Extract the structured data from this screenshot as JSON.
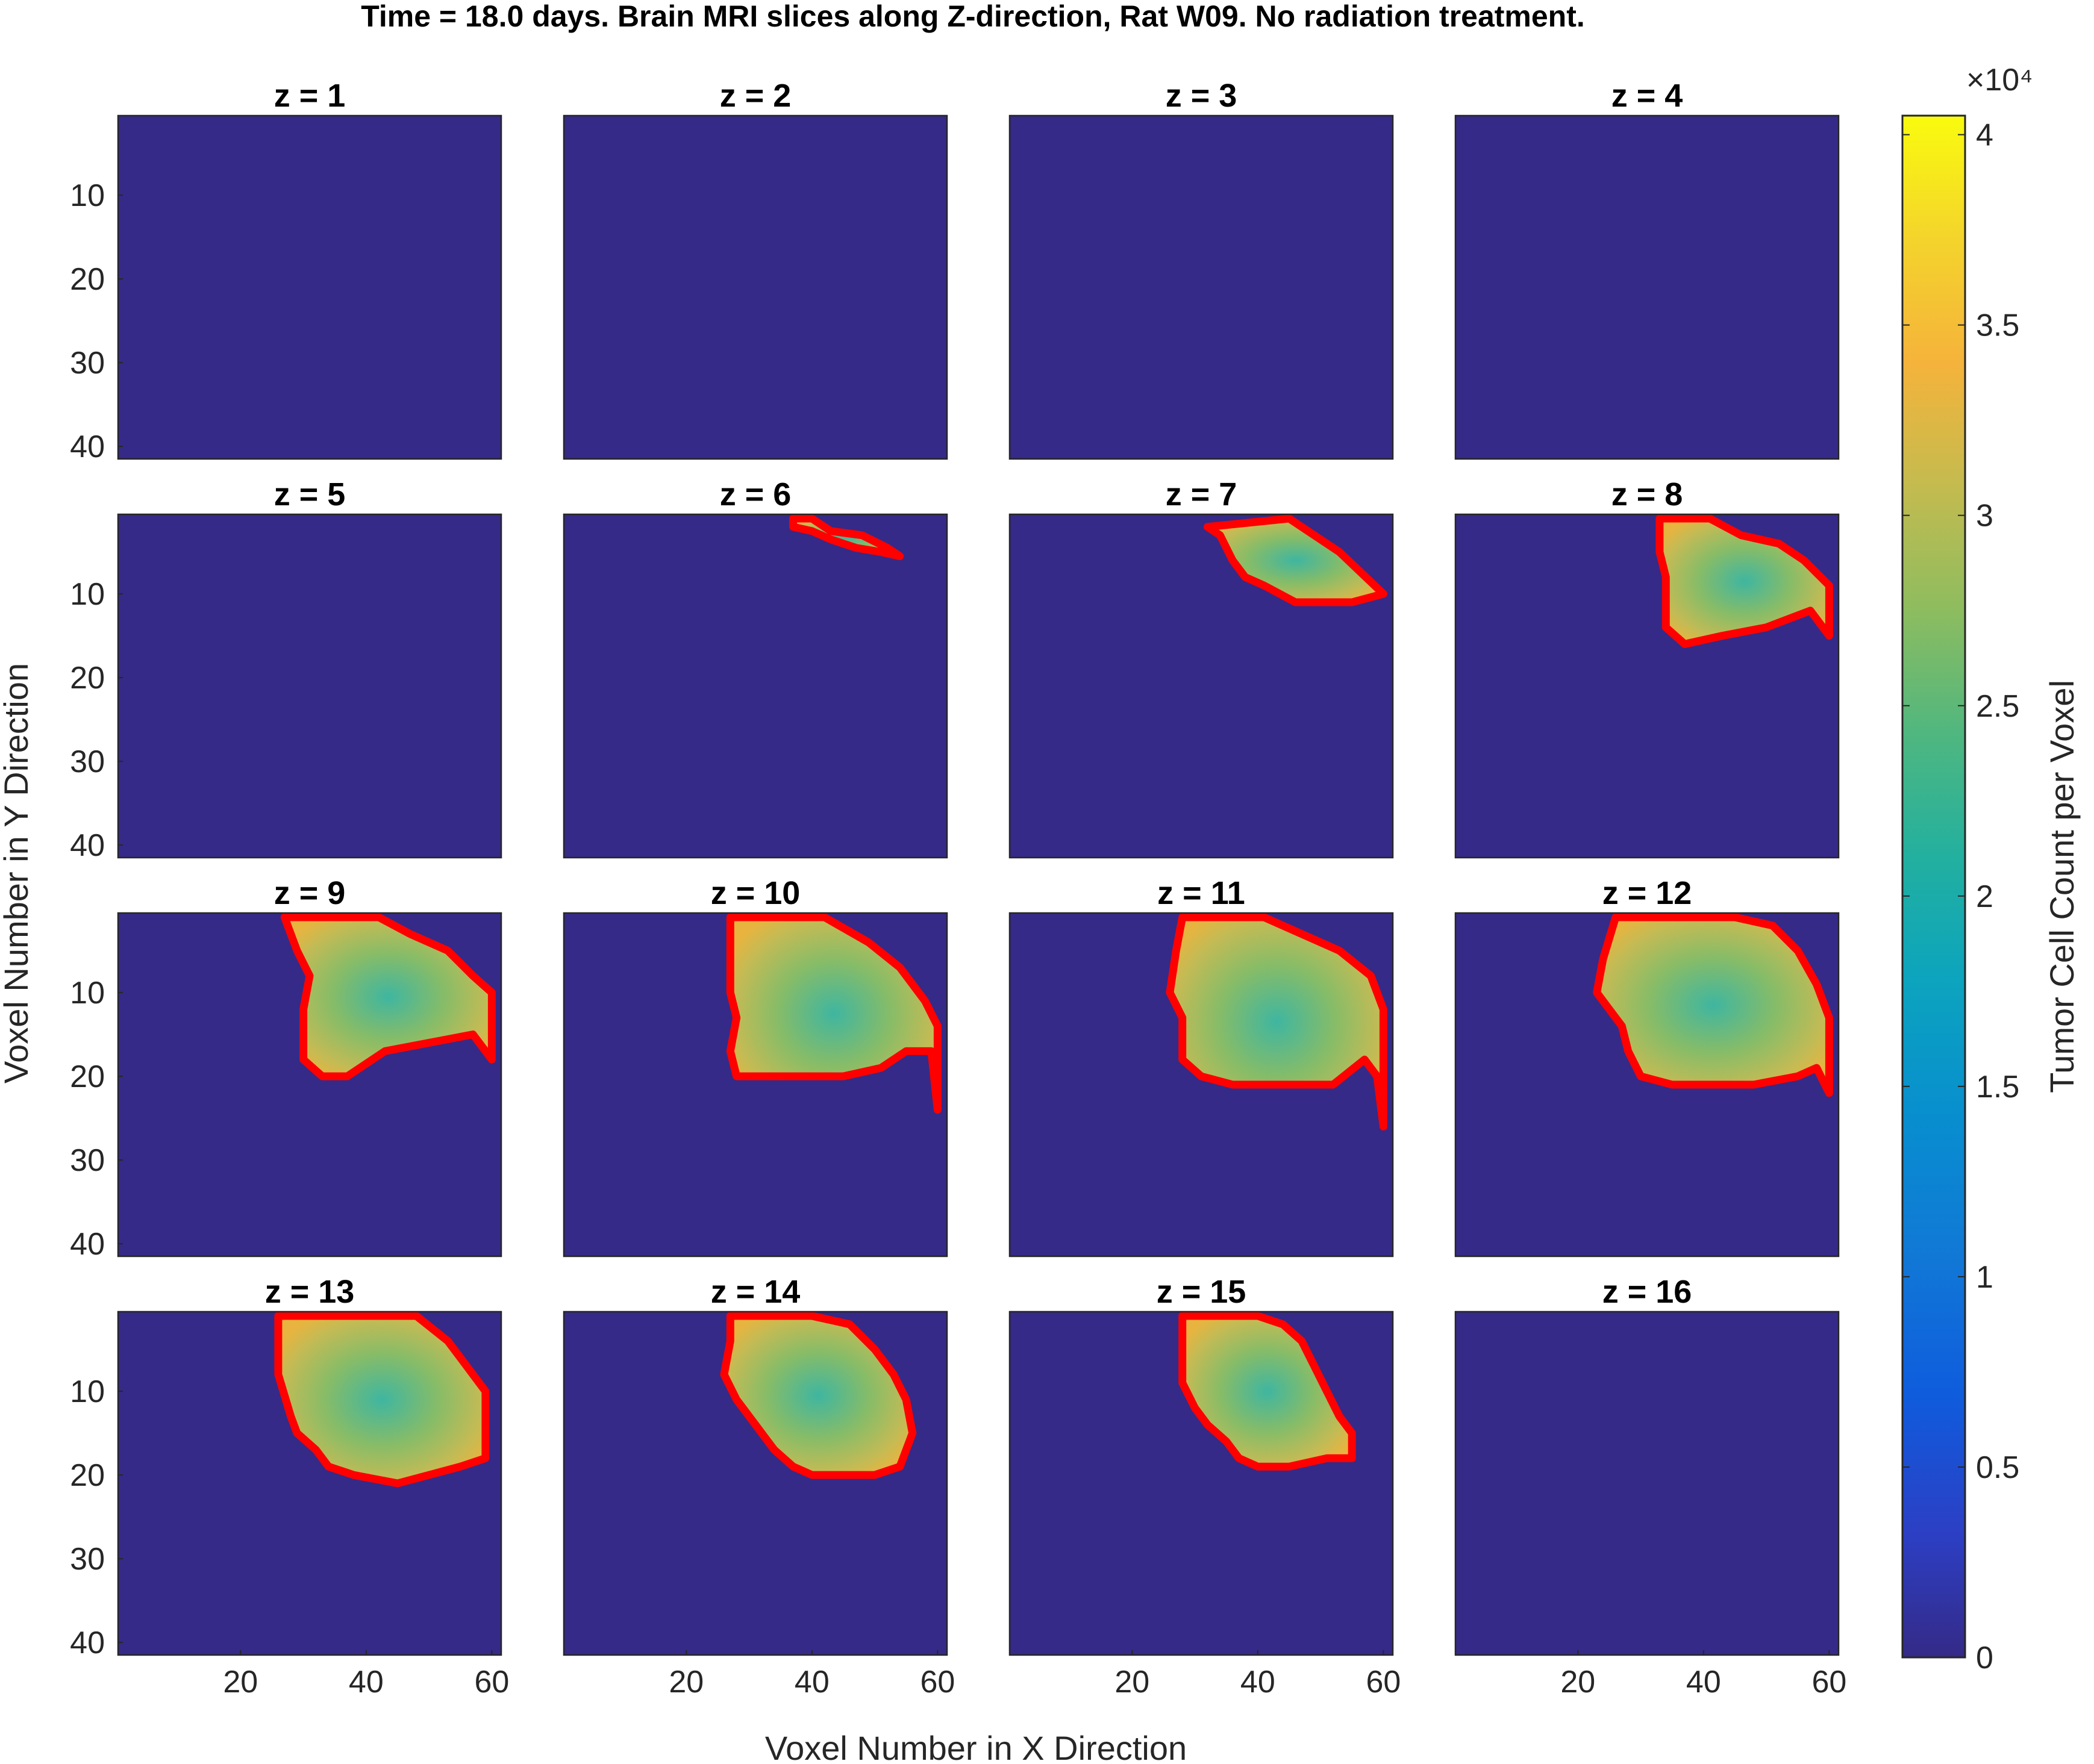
{
  "chart_data": {
    "type": "heatmap",
    "title": "Time = 18.0 days. Brain MRI slices along Z-direction, Rat W09. No radiation treatment.",
    "xlabel": "Voxel Number in X Direction",
    "ylabel": "Voxel Number in Y Direction",
    "xlim": [
      0.5,
      61.5
    ],
    "ylim": [
      0.5,
      41.5
    ],
    "xticks": [
      20,
      40,
      60
    ],
    "yticks": [
      10,
      20,
      30,
      40
    ],
    "background_color": "#352a87",
    "contour_color": "#ff0000",
    "colorbar": {
      "label": "Tumor Cell Count per Voxel",
      "exponent_label": "×10⁴",
      "range": [
        0,
        40500
      ],
      "ticks": [
        0,
        5000,
        10000,
        15000,
        20000,
        25000,
        30000,
        35000,
        40000
      ],
      "tick_labels": [
        "0",
        "0.5",
        "1",
        "1.5",
        "2",
        "2.5",
        "3",
        "3.5",
        "4"
      ],
      "colormap": "parula"
    },
    "panels": [
      {
        "title": "z = 1",
        "tumor_outline": []
      },
      {
        "title": "z = 2",
        "tumor_outline": []
      },
      {
        "title": "z = 3",
        "tumor_outline": []
      },
      {
        "title": "z = 4",
        "tumor_outline": []
      },
      {
        "title": "z = 5",
        "tumor_outline": []
      },
      {
        "title": "z = 6",
        "tumor_outline": [
          [
            37,
            1
          ],
          [
            40,
            1
          ],
          [
            43,
            2.5
          ],
          [
            48,
            3
          ],
          [
            52,
            4.5
          ],
          [
            54,
            5.5
          ],
          [
            51,
            5
          ],
          [
            47,
            4.5
          ],
          [
            43,
            3.5
          ],
          [
            40,
            2.5
          ],
          [
            37,
            2
          ]
        ]
      },
      {
        "title": "z = 7",
        "tumor_outline": [
          [
            32,
            2
          ],
          [
            45,
            1
          ],
          [
            53,
            5
          ],
          [
            60,
            10
          ],
          [
            55,
            11
          ],
          [
            46,
            11
          ],
          [
            41,
            9
          ],
          [
            38,
            8
          ],
          [
            36,
            6
          ],
          [
            34,
            3
          ]
        ]
      },
      {
        "title": "z = 8",
        "tumor_outline": [
          [
            33,
            1
          ],
          [
            41,
            1
          ],
          [
            46,
            3
          ],
          [
            52,
            4
          ],
          [
            56,
            6
          ],
          [
            60,
            9
          ],
          [
            60,
            15
          ],
          [
            57,
            12
          ],
          [
            50,
            14
          ],
          [
            43,
            15
          ],
          [
            37,
            16
          ],
          [
            34,
            14
          ],
          [
            34,
            8
          ],
          [
            33,
            5
          ]
        ]
      },
      {
        "title": "z = 9",
        "tumor_outline": [
          [
            27,
            1
          ],
          [
            42,
            1
          ],
          [
            47,
            3
          ],
          [
            53,
            5
          ],
          [
            57,
            8
          ],
          [
            60,
            10
          ],
          [
            60,
            18
          ],
          [
            57,
            15
          ],
          [
            50,
            16
          ],
          [
            43,
            17
          ],
          [
            37,
            20
          ],
          [
            33,
            20
          ],
          [
            30,
            18
          ],
          [
            30,
            12
          ],
          [
            31,
            8
          ],
          [
            29,
            5
          ]
        ]
      },
      {
        "title": "z = 10",
        "tumor_outline": [
          [
            27,
            1
          ],
          [
            42,
            1
          ],
          [
            49,
            4
          ],
          [
            54,
            7
          ],
          [
            58,
            11
          ],
          [
            60,
            14
          ],
          [
            60,
            24
          ],
          [
            59,
            17
          ],
          [
            55,
            17
          ],
          [
            51,
            19
          ],
          [
            45,
            20
          ],
          [
            38,
            20
          ],
          [
            34,
            20
          ],
          [
            28,
            20
          ],
          [
            27,
            17
          ],
          [
            28,
            13
          ],
          [
            27,
            10
          ],
          [
            27,
            5
          ]
        ]
      },
      {
        "title": "z = 11",
        "tumor_outline": [
          [
            28,
            1
          ],
          [
            41,
            1
          ],
          [
            47,
            3
          ],
          [
            53,
            5
          ],
          [
            58,
            8
          ],
          [
            60,
            12
          ],
          [
            60,
            26
          ],
          [
            59,
            20
          ],
          [
            57,
            18
          ],
          [
            52,
            21
          ],
          [
            45,
            21
          ],
          [
            36,
            21
          ],
          [
            31,
            20
          ],
          [
            28,
            18
          ],
          [
            28,
            13
          ],
          [
            26,
            10
          ],
          [
            27,
            5
          ]
        ]
      },
      {
        "title": "z = 12",
        "tumor_outline": [
          [
            26,
            1
          ],
          [
            38,
            1
          ],
          [
            45,
            1
          ],
          [
            51,
            2
          ],
          [
            55,
            5
          ],
          [
            58,
            9
          ],
          [
            60,
            13
          ],
          [
            60,
            22
          ],
          [
            58,
            19
          ],
          [
            55,
            20
          ],
          [
            48,
            21
          ],
          [
            42,
            21
          ],
          [
            35,
            21
          ],
          [
            30,
            20
          ],
          [
            28,
            17
          ],
          [
            27,
            14
          ],
          [
            25,
            12
          ],
          [
            23,
            10
          ],
          [
            24,
            6
          ]
        ]
      },
      {
        "title": "z = 13",
        "tumor_outline": [
          [
            26,
            1
          ],
          [
            40,
            1
          ],
          [
            48,
            1
          ],
          [
            53,
            4
          ],
          [
            56,
            7
          ],
          [
            59,
            10
          ],
          [
            59,
            18
          ],
          [
            55,
            19
          ],
          [
            50,
            20
          ],
          [
            45,
            21
          ],
          [
            38,
            20
          ],
          [
            34,
            19
          ],
          [
            32,
            17
          ],
          [
            29,
            15
          ],
          [
            28,
            13
          ],
          [
            26,
            8
          ],
          [
            26,
            4
          ]
        ]
      },
      {
        "title": "z = 14",
        "tumor_outline": [
          [
            27,
            1
          ],
          [
            40,
            1
          ],
          [
            46,
            2
          ],
          [
            50,
            5
          ],
          [
            53,
            8
          ],
          [
            55,
            11
          ],
          [
            56,
            15
          ],
          [
            54,
            19
          ],
          [
            50,
            20
          ],
          [
            45,
            20
          ],
          [
            40,
            20
          ],
          [
            37,
            19
          ],
          [
            34,
            17
          ],
          [
            31,
            14
          ],
          [
            28,
            11
          ],
          [
            26,
            8
          ],
          [
            27,
            4
          ]
        ]
      },
      {
        "title": "z = 15",
        "tumor_outline": [
          [
            28,
            1
          ],
          [
            40,
            1
          ],
          [
            44,
            2
          ],
          [
            47,
            4
          ],
          [
            49,
            7
          ],
          [
            51,
            10
          ],
          [
            53,
            13
          ],
          [
            55,
            15
          ],
          [
            55,
            18
          ],
          [
            51,
            18
          ],
          [
            45,
            19
          ],
          [
            40,
            19
          ],
          [
            37,
            18
          ],
          [
            35,
            16
          ],
          [
            32,
            14
          ],
          [
            30,
            12
          ],
          [
            28,
            9
          ],
          [
            28,
            6
          ]
        ]
      },
      {
        "title": "z = 16",
        "tumor_outline": []
      }
    ]
  }
}
